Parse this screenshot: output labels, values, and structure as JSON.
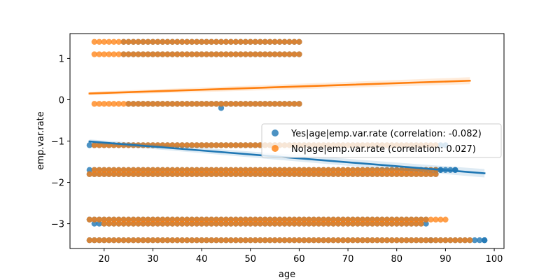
{
  "chart_data": {
    "type": "scatter",
    "title": "",
    "xlabel": "age",
    "ylabel": "emp.var.rate",
    "xlim": [
      13,
      102
    ],
    "ylim": [
      -3.6,
      1.6
    ],
    "xticks": [
      20,
      30,
      40,
      50,
      60,
      70,
      80,
      90,
      100
    ],
    "yticks": [
      -3,
      -2,
      -1,
      0,
      1
    ],
    "legend_position": "right",
    "series": [
      {
        "name": "Yes|age|emp.var.rate (correlation: -0.082)",
        "color": "#1f77b4",
        "bands": [
          {
            "y": 1.4,
            "x_range": [
              24,
              60
            ]
          },
          {
            "y": 1.1,
            "x_range": [
              24,
              60
            ]
          },
          {
            "y": -0.1,
            "x_range": [
              25,
              60
            ]
          },
          {
            "y": -1.1,
            "x_range": [
              17,
              90
            ]
          },
          {
            "y": -1.7,
            "x_range": [
              17,
              92
            ]
          },
          {
            "y": -1.8,
            "x_range": [
              17,
              88
            ]
          },
          {
            "y": -2.9,
            "x_range": [
              17,
              86
            ]
          },
          {
            "y": -3.0,
            "x_range": [
              18,
              86
            ]
          },
          {
            "y": -3.4,
            "x_range": [
              17,
              98
            ]
          }
        ],
        "outliers": [
          {
            "x": 44,
            "y": -0.2
          },
          {
            "x": 98,
            "y": -3.4
          },
          {
            "x": 88,
            "y": -1.7
          },
          {
            "x": 92,
            "y": -1.7
          },
          {
            "x": 89,
            "y": -1.7
          },
          {
            "x": 87,
            "y": -3.4
          }
        ],
        "regression": {
          "x": [
            17,
            98
          ],
          "y": [
            -1.01,
            -1.78
          ]
        }
      },
      {
        "name": "No|age|emp.var.rate (correlation: 0.027)",
        "color": "#ff7f0e",
        "bands": [
          {
            "y": 1.4,
            "x_range": [
              18,
              60
            ]
          },
          {
            "y": 1.1,
            "x_range": [
              18,
              60
            ]
          },
          {
            "y": -0.1,
            "x_range": [
              18,
              60
            ]
          },
          {
            "y": -1.1,
            "x_range": [
              18,
              88
            ]
          },
          {
            "y": -1.7,
            "x_range": [
              18,
              88
            ]
          },
          {
            "y": -1.8,
            "x_range": [
              17,
              88
            ]
          },
          {
            "y": -2.9,
            "x_range": [
              17,
              90
            ]
          },
          {
            "y": -3.0,
            "x_range": [
              20,
              85
            ]
          },
          {
            "y": -3.4,
            "x_range": [
              17,
              95
            ]
          }
        ],
        "outliers": [],
        "regression": {
          "x": [
            17,
            95
          ],
          "y": [
            0.15,
            0.46
          ]
        }
      }
    ]
  }
}
